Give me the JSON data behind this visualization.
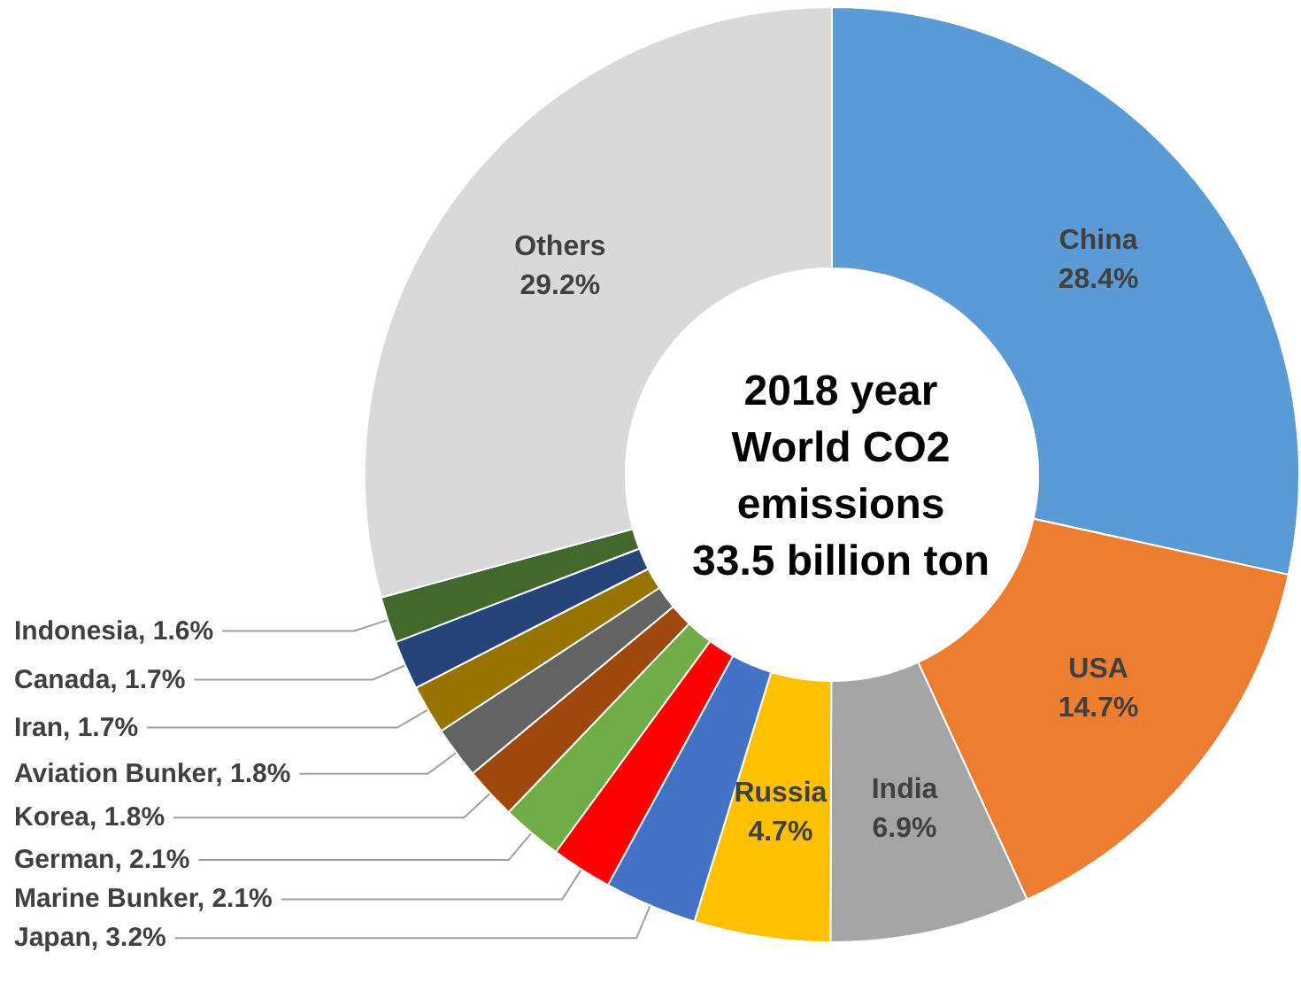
{
  "chart_data": {
    "type": "donut",
    "title": "2018 year\nWorld CO2\nemissions\n33.5 billion ton",
    "categories": [
      "China",
      "USA",
      "India",
      "Russia",
      "Japan",
      "Marine Bunker",
      "German",
      "Korea",
      "Aviation Bunker",
      "Iran",
      "Canada",
      "Indonesia",
      "Others"
    ],
    "values": [
      28.4,
      14.7,
      6.9,
      4.7,
      3.2,
      2.1,
      2.1,
      1.8,
      1.8,
      1.7,
      1.7,
      1.6,
      29.2
    ],
    "colors": [
      "#5b9bd5",
      "#ed7d31",
      "#a5a5a5",
      "#ffc000",
      "#4472c4",
      "#ff0000",
      "#70ad47",
      "#9e480e",
      "#636363",
      "#997300",
      "#264478",
      "#43682b",
      "#d9d9d9"
    ],
    "value_labels": [
      "28.4%",
      "14.7%",
      "6.9%",
      "4.7%",
      "3.2%",
      "2.1%",
      "2.1%",
      "1.8%",
      "1.8%",
      "1.7%",
      "1.7%",
      "1.6%",
      "29.2%"
    ],
    "legend": false
  }
}
